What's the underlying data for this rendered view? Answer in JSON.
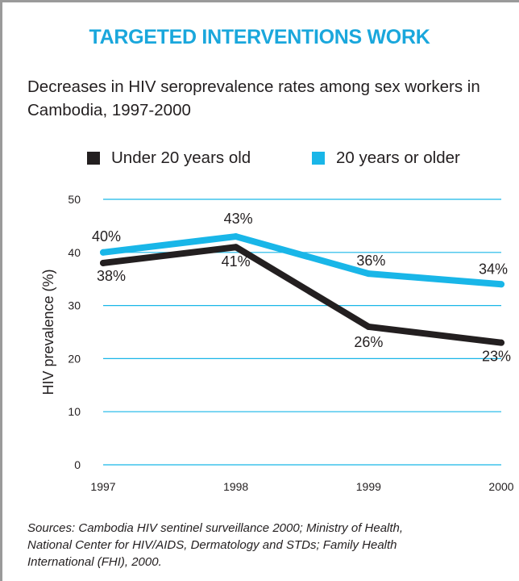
{
  "title": "TARGETED INTERVENTIONS WORK",
  "subtitle": "Decreases in HIV seroprevalence rates among sex workers in Cambodia, 1997-2000",
  "source": "Sources: Cambodia HIV sentinel surveillance 2000; Ministry of Health,\nNational Center for HIV/AIDS, Dermatology and STDs; Family Health\nInternational (FHI), 2000.",
  "colors": {
    "title": "#1aa7dc",
    "under20": "#231f20",
    "over20": "#19b6e8",
    "grid": "#19b6e8",
    "frame": "#9a9a9a"
  },
  "chart_data": {
    "type": "line",
    "title": "TARGETED INTERVENTIONS WORK",
    "subtitle": "Decreases in HIV seroprevalence rates among sex workers in Cambodia, 1997-2000",
    "xlabel": "",
    "ylabel": "HIV prevalence (%)",
    "x": [
      "1997",
      "1998",
      "1999",
      "2000"
    ],
    "ylim": [
      0,
      50
    ],
    "yticks": [
      "0",
      "10",
      "20",
      "30",
      "40",
      "50"
    ],
    "grid": true,
    "legend_position": "top",
    "series": [
      {
        "name": "Under 20 years old",
        "values": [
          38,
          41,
          26,
          23
        ],
        "labels": [
          "38%",
          "41%",
          "26%",
          "23%"
        ]
      },
      {
        "name": "20 years or older",
        "values": [
          40,
          43,
          36,
          34
        ],
        "labels": [
          "40%",
          "43%",
          "36%",
          "34%"
        ]
      }
    ]
  }
}
